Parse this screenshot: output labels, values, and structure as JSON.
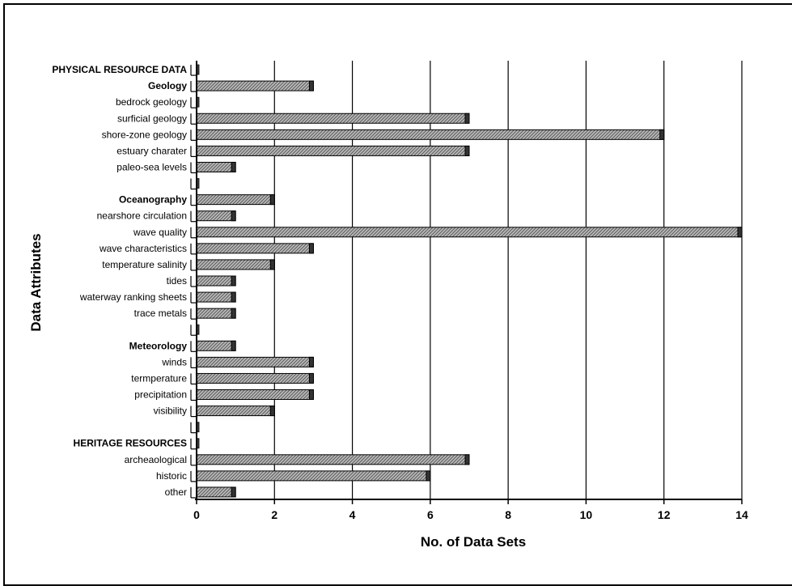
{
  "chart_data": {
    "type": "bar",
    "orientation": "horizontal",
    "xlabel": "No. of Data Sets",
    "ylabel": "Data Attributes",
    "xlim": [
      0,
      14
    ],
    "xticks": [
      "0",
      "2",
      "4",
      "6",
      "8",
      "10",
      "12",
      "14"
    ],
    "grid": "vertical",
    "bar_color": "#a0a0a0",
    "categories": [
      {
        "label": "PHYSICAL RESOURCE DATA",
        "value": 0,
        "bold": true
      },
      {
        "label": "Geology",
        "value": 3,
        "bold": true
      },
      {
        "label": "bedrock geology",
        "value": 0,
        "bold": false
      },
      {
        "label": "surficial geology",
        "value": 7,
        "bold": false
      },
      {
        "label": "shore-zone geology",
        "value": 12,
        "bold": false
      },
      {
        "label": "estuary charater",
        "value": 7,
        "bold": false
      },
      {
        "label": "paleo-sea levels",
        "value": 1,
        "bold": false
      },
      {
        "label": "",
        "value": 0,
        "bold": false
      },
      {
        "label": "Oceanography",
        "value": 2,
        "bold": true
      },
      {
        "label": "nearshore circulation",
        "value": 1,
        "bold": false
      },
      {
        "label": "wave quality",
        "value": 14,
        "bold": false
      },
      {
        "label": "wave characteristics",
        "value": 3,
        "bold": false
      },
      {
        "label": "temperature salinity",
        "value": 2,
        "bold": false
      },
      {
        "label": "tides",
        "value": 1,
        "bold": false
      },
      {
        "label": "waterway ranking sheets",
        "value": 1,
        "bold": false
      },
      {
        "label": "trace metals",
        "value": 1,
        "bold": false
      },
      {
        "label": "",
        "value": 0,
        "bold": false
      },
      {
        "label": "Meteorology",
        "value": 1,
        "bold": true
      },
      {
        "label": "winds",
        "value": 3,
        "bold": false
      },
      {
        "label": "termperature",
        "value": 3,
        "bold": false
      },
      {
        "label": "precipitation",
        "value": 3,
        "bold": false
      },
      {
        "label": "visibility",
        "value": 2,
        "bold": false
      },
      {
        "label": "",
        "value": 0,
        "bold": false
      },
      {
        "label": "HERITAGE RESOURCES",
        "value": 0,
        "bold": true
      },
      {
        "label": "archeaological",
        "value": 7,
        "bold": false
      },
      {
        "label": "historic",
        "value": 6,
        "bold": false
      },
      {
        "label": "other",
        "value": 1,
        "bold": false
      }
    ]
  }
}
